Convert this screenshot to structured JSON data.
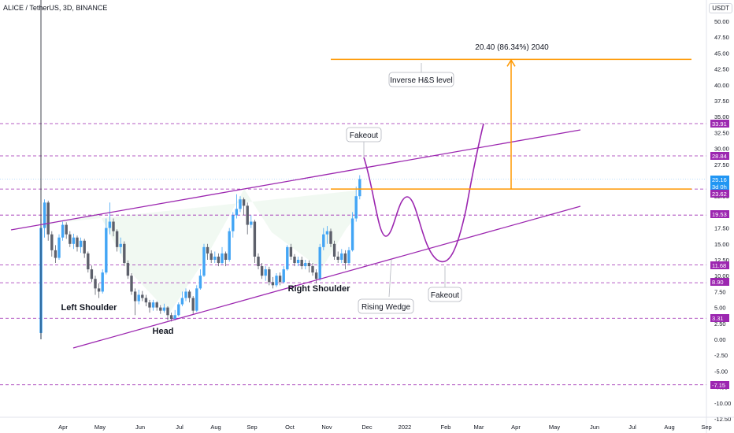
{
  "header": {
    "symbol": "ALICE / TetherUS, 3D, BINANCE",
    "currency": "USDT"
  },
  "price_axis": {
    "ticks": [
      "50.00",
      "47.50",
      "45.00",
      "42.50",
      "40.00",
      "37.50",
      "35.00",
      "32.50",
      "30.00",
      "27.50",
      "25.00",
      "22.50",
      "20.00",
      "17.50",
      "15.00",
      "12.50",
      "10.00",
      "7.50",
      "5.00",
      "2.50",
      "0.00",
      "-2.50",
      "-5.00",
      "-7.50",
      "-10.00",
      "-12.50"
    ],
    "highlighted": [
      {
        "label": "33.91",
        "color": "#9c27b0"
      },
      {
        "label": "28.84",
        "color": "#9c27b0"
      },
      {
        "label": "25.16",
        "color": "#2196f3"
      },
      {
        "label": "3d 0h",
        "color": "#2196f3"
      },
      {
        "label": "23.62",
        "color": "#9c27b0"
      },
      {
        "label": "19.53",
        "color": "#9c27b0"
      },
      {
        "label": "11.68",
        "color": "#9c27b0"
      },
      {
        "label": "8.90",
        "color": "#9c27b0"
      },
      {
        "label": "3.31",
        "color": "#9c27b0"
      },
      {
        "label": "-7.15",
        "color": "#9c27b0"
      }
    ]
  },
  "time_axis": {
    "ticks": [
      "Apr",
      "May",
      "Jun",
      "Jul",
      "Aug",
      "Sep",
      "Oct",
      "Nov",
      "Dec",
      "2022",
      "Feb",
      "Mar",
      "Apr",
      "May",
      "Jun",
      "Jul",
      "Aug",
      "Sep"
    ]
  },
  "annotations": {
    "measure": "20.40 (86.34%) 2040",
    "target_label": "Inverse H&S level",
    "fakeout_top": "Fakeout",
    "fakeout_bottom": "Fakeout",
    "wedge": "Rising Wedge",
    "left_shoulder": "Left Shoulder",
    "head": "Head",
    "right_shoulder": "Right Shoulder"
  },
  "colors": {
    "up": "#42a5f5",
    "down": "#5d606b",
    "wedge": "#9c27b0",
    "target": "#ff9800",
    "dashed": "#9c27b0"
  },
  "chart_data": {
    "type": "candlestick",
    "candles": [
      [
        1.0,
        17.5,
        19.0,
        0.0
      ],
      [
        17.5,
        21.5,
        22.0,
        16.0
      ],
      [
        21.5,
        16.5,
        21.8,
        15.5
      ],
      [
        16.5,
        14.0,
        17.0,
        13.0
      ],
      [
        14.0,
        12.8,
        14.8,
        12.0
      ],
      [
        12.8,
        16.0,
        16.5,
        12.5
      ],
      [
        16.0,
        18.0,
        18.5,
        15.5
      ],
      [
        18.0,
        16.5,
        18.4,
        15.8
      ],
      [
        16.5,
        15.0,
        17.0,
        14.5
      ],
      [
        15.0,
        16.0,
        16.6,
        14.2
      ],
      [
        16.0,
        14.5,
        16.3,
        13.8
      ],
      [
        14.5,
        15.5,
        16.0,
        13.6
      ],
      [
        15.5,
        13.5,
        15.8,
        12.8
      ],
      [
        13.5,
        11.0,
        13.8,
        10.5
      ],
      [
        11.0,
        9.5,
        11.6,
        9.0
      ],
      [
        9.5,
        8.0,
        10.0,
        7.0
      ],
      [
        8.0,
        7.5,
        8.8,
        6.5
      ],
      [
        7.5,
        10.5,
        11.0,
        7.2
      ],
      [
        10.5,
        17.5,
        19.0,
        10.2
      ],
      [
        17.5,
        18.5,
        21.5,
        16.5
      ],
      [
        18.5,
        17.0,
        19.0,
        16.2
      ],
      [
        17.0,
        14.5,
        17.3,
        13.8
      ],
      [
        14.5,
        15.0,
        16.0,
        13.5
      ],
      [
        15.0,
        12.0,
        15.4,
        11.5
      ],
      [
        12.0,
        10.0,
        12.4,
        9.5
      ],
      [
        10.0,
        7.5,
        10.4,
        7.0
      ],
      [
        7.5,
        6.0,
        8.0,
        3.8
      ],
      [
        6.0,
        7.0,
        7.8,
        5.5
      ],
      [
        7.0,
        6.5,
        7.6,
        6.0
      ],
      [
        6.5,
        5.8,
        7.0,
        5.2
      ],
      [
        5.8,
        5.0,
        6.2,
        4.2
      ],
      [
        5.0,
        5.8,
        6.2,
        4.5
      ],
      [
        5.8,
        5.0,
        6.0,
        4.5
      ],
      [
        5.0,
        4.5,
        5.4,
        4.0
      ],
      [
        4.5,
        5.0,
        5.6,
        4.2
      ],
      [
        5.0,
        3.8,
        5.2,
        3.0
      ],
      [
        3.8,
        3.2,
        4.2,
        2.8
      ],
      [
        3.2,
        3.8,
        4.6,
        3.0
      ],
      [
        3.8,
        5.5,
        5.8,
        3.6
      ],
      [
        5.5,
        6.5,
        7.5,
        5.2
      ],
      [
        6.5,
        7.5,
        8.0,
        6.0
      ],
      [
        7.5,
        6.5,
        7.8,
        5.8
      ],
      [
        6.5,
        4.5,
        6.8,
        4.0
      ],
      [
        4.5,
        8.0,
        8.5,
        4.3
      ],
      [
        8.0,
        10.0,
        11.0,
        7.8
      ],
      [
        10.0,
        14.5,
        15.0,
        9.8
      ],
      [
        14.5,
        13.5,
        15.0,
        12.5
      ],
      [
        13.5,
        12.5,
        14.0,
        12.0
      ],
      [
        12.5,
        13.0,
        13.8,
        12.0
      ],
      [
        13.0,
        12.0,
        13.5,
        11.5
      ],
      [
        12.0,
        13.5,
        14.5,
        11.8
      ],
      [
        13.5,
        12.5,
        13.8,
        11.5
      ],
      [
        12.5,
        17.0,
        17.5,
        12.2
      ],
      [
        17.0,
        19.5,
        20.0,
        16.0
      ],
      [
        19.5,
        20.5,
        22.8,
        19.0
      ],
      [
        20.5,
        22.0,
        22.5,
        20.0
      ],
      [
        22.0,
        21.0,
        22.3,
        19.5
      ],
      [
        21.0,
        18.0,
        21.5,
        16.5
      ],
      [
        18.0,
        18.5,
        19.5,
        17.5
      ],
      [
        18.5,
        13.0,
        18.8,
        12.0
      ],
      [
        13.0,
        11.5,
        13.5,
        11.0
      ],
      [
        11.5,
        10.0,
        12.0,
        9.5
      ],
      [
        10.0,
        11.0,
        11.5,
        9.2
      ],
      [
        11.0,
        9.0,
        11.4,
        8.5
      ],
      [
        9.0,
        8.5,
        9.8,
        8.0
      ],
      [
        8.5,
        10.0,
        10.4,
        8.2
      ],
      [
        10.0,
        9.0,
        10.5,
        8.5
      ],
      [
        9.0,
        11.0,
        11.5,
        8.8
      ],
      [
        11.0,
        14.5,
        14.8,
        10.8
      ],
      [
        14.5,
        13.0,
        15.0,
        12.5
      ],
      [
        13.0,
        12.0,
        13.4,
        11.5
      ],
      [
        12.0,
        12.5,
        13.0,
        11.5
      ],
      [
        12.5,
        11.5,
        13.0,
        11.0
      ],
      [
        11.5,
        12.0,
        12.5,
        11.0
      ],
      [
        12.0,
        11.5,
        12.4,
        10.5
      ],
      [
        11.5,
        10.5,
        12.0,
        10.0
      ],
      [
        10.5,
        9.5,
        11.0,
        8.8
      ],
      [
        9.5,
        14.5,
        15.0,
        9.2
      ],
      [
        14.5,
        16.5,
        17.5,
        14.0
      ],
      [
        16.5,
        17.0,
        17.8,
        15.0
      ],
      [
        17.0,
        15.0,
        17.4,
        14.5
      ],
      [
        15.0,
        13.0,
        15.5,
        12.5
      ],
      [
        13.0,
        12.5,
        13.8,
        12.0
      ],
      [
        12.5,
        13.5,
        14.2,
        12.0
      ],
      [
        13.5,
        12.0,
        14.0,
        11.0
      ],
      [
        12.0,
        14.0,
        14.5,
        11.8
      ],
      [
        14.0,
        19.0,
        20.0,
        13.8
      ],
      [
        19.0,
        22.5,
        24.0,
        18.5
      ],
      [
        22.5,
        25.2,
        25.8,
        22.0
      ]
    ],
    "horizontal_levels": [
      33.91,
      28.84,
      23.62,
      19.53,
      11.68,
      8.9,
      3.31,
      -7.15
    ],
    "target_level": 44.02,
    "breakout_level": 23.62,
    "measured_move": 20.4,
    "measured_move_pct": 86.34
  }
}
